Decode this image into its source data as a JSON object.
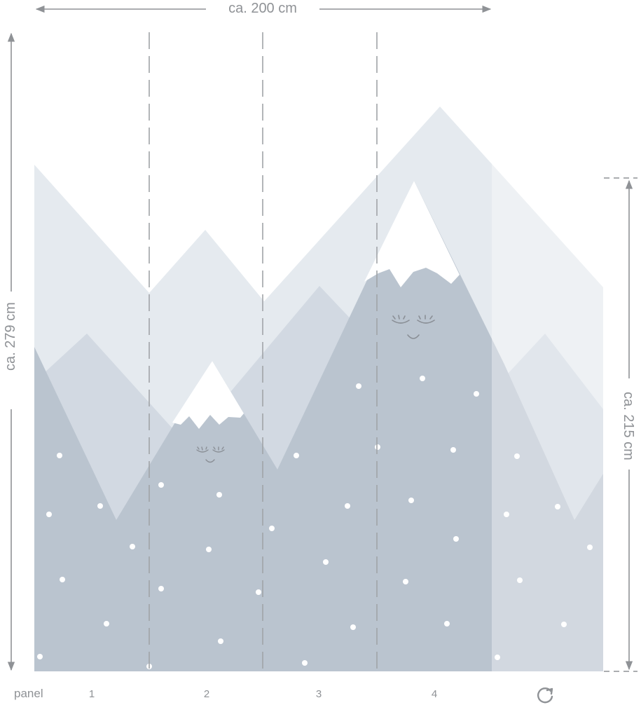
{
  "dimensions": {
    "width_label": "ca. 200 cm",
    "height_label": "ca. 279 cm",
    "visible_height_label": "ca. 215 cm"
  },
  "footer": {
    "caption": "panel",
    "panels": [
      "1",
      "2",
      "3",
      "4"
    ],
    "rotate_icon": "rotate-icon"
  },
  "colors": {
    "sky": "#ffffff",
    "mountain_back": "#e5eaef",
    "mountain_mid": "#d2d9e2",
    "mountain_front": "#bac4cf",
    "snow": "#ffffff",
    "offcut_overlay": "#ffffff",
    "guides": "#8f9296",
    "panel_divider": "#a0a3a7"
  }
}
